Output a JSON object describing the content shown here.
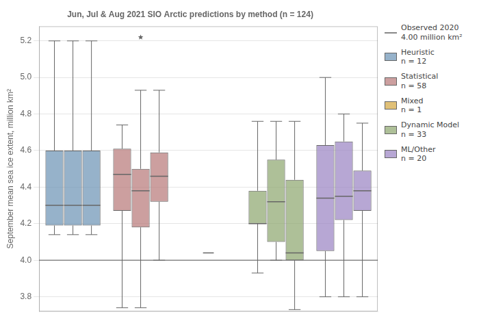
{
  "chart_data": {
    "type": "box",
    "title": "Jun, Jul & Aug 2021 SIO Arctic predictions by method (n = 124)",
    "ylabel": "September mean sea ice extent, million km²",
    "ylim": [
      3.72,
      5.28
    ],
    "yticks": [
      3.8,
      {
        "value": 4.0,
        "label": "4.0"
      },
      4.2,
      4.4,
      4.6,
      4.8,
      {
        "value": 5.0,
        "label": "5.0"
      },
      5.2
    ],
    "grid": true,
    "tick_labels": "y",
    "legend": "right",
    "series": [
      {
        "name": "Observed 2020\n4.00 million km²",
        "type": "hline",
        "color": "#888888",
        "values": [
          4.0
        ]
      },
      {
        "name": "Heuristic\nn = 12",
        "type": "box",
        "color": "#6e94b5",
        "values": [
          {
            "q1": 4.19,
            "median": 4.3,
            "q3": 4.6,
            "whislo": 4.14,
            "whishi": 5.2,
            "fliers": []
          },
          {
            "q1": 4.19,
            "median": 4.3,
            "q3": 4.6,
            "whislo": 4.14,
            "whishi": 5.2,
            "fliers": []
          },
          {
            "q1": 4.19,
            "median": 4.3,
            "q3": 4.6,
            "whislo": 4.14,
            "whishi": 5.2,
            "fliers": []
          }
        ]
      },
      {
        "name": "Statistical\nn = 58",
        "type": "box",
        "color": "#b87a7a",
        "values": [
          {
            "q1": 4.27,
            "median": 4.47,
            "q3": 4.61,
            "whislo": 3.74,
            "whishi": 4.74,
            "fliers": []
          },
          {
            "q1": 4.18,
            "median": 4.38,
            "q3": 4.5,
            "whislo": 3.74,
            "whishi": 4.93,
            "fliers": [
              5.22
            ]
          },
          {
            "q1": 4.32,
            "median": 4.46,
            "q3": 4.59,
            "whislo": 4.0,
            "whishi": 4.93,
            "fliers": []
          }
        ]
      },
      {
        "name": "Mixed\nn = 1",
        "type": "line",
        "color": "#d4a843",
        "values": [
          4.04
        ]
      },
      {
        "name": "Dynamic Model\nn = 33",
        "type": "box",
        "color": "#8fa870",
        "values": [
          {
            "q1": 4.2,
            "median": 4.2,
            "q3": 4.38,
            "whislo": 3.93,
            "whishi": 4.76,
            "fliers": []
          },
          {
            "q1": 4.1,
            "median": 4.32,
            "q3": 4.55,
            "whislo": 4.0,
            "whishi": 4.76,
            "fliers": []
          },
          {
            "q1": 4.0,
            "median": 4.04,
            "q3": 4.44,
            "whislo": 3.73,
            "whishi": 4.76,
            "fliers": []
          }
        ]
      },
      {
        "name": "ML/Other\nn = 20",
        "type": "box",
        "color": "#9b85c4",
        "values": [
          {
            "q1": 4.05,
            "median": 4.34,
            "q3": 4.63,
            "whislo": 3.8,
            "whishi": 5.0,
            "fliers": []
          },
          {
            "q1": 4.22,
            "median": 4.35,
            "q3": 4.65,
            "whislo": 3.8,
            "whishi": 4.8,
            "fliers": []
          },
          {
            "q1": 4.27,
            "median": 4.38,
            "q3": 4.49,
            "whislo": 3.8,
            "whishi": 4.75,
            "fliers": []
          }
        ]
      }
    ]
  }
}
